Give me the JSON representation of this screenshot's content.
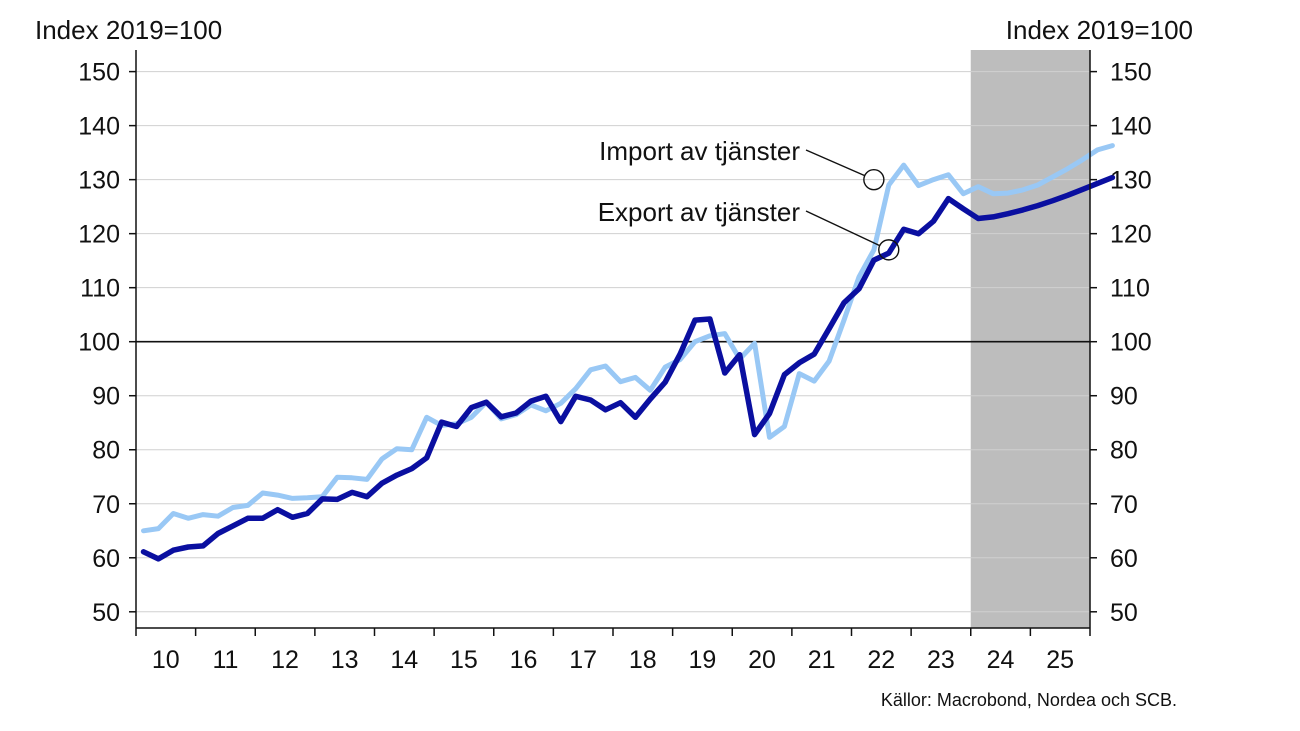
{
  "chart_data": {
    "type": "line",
    "y_axis_label_left": "Index 2019=100",
    "y_axis_label_right": "Index 2019=100",
    "source": "Källor: Macrobond, Nordea och SCB.",
    "ylim": [
      47,
      154
    ],
    "yticks": [
      50,
      60,
      70,
      80,
      90,
      100,
      110,
      120,
      130,
      140,
      150
    ],
    "ytick_labels": [
      "50",
      "60",
      "70",
      "80",
      "90",
      "100",
      "110",
      "120",
      "130",
      "140",
      "150"
    ],
    "xlim": [
      2010.0,
      2026.0
    ],
    "xtick_labels": [
      "10",
      "11",
      "12",
      "13",
      "14",
      "15",
      "16",
      "17",
      "18",
      "19",
      "20",
      "21",
      "22",
      "23",
      "24",
      "25"
    ],
    "xtick_years": [
      2010,
      2011,
      2012,
      2013,
      2014,
      2015,
      2016,
      2017,
      2018,
      2019,
      2020,
      2021,
      2022,
      2023,
      2024,
      2025
    ],
    "reference_line": 100,
    "forecast_shading": {
      "from": 2024.0,
      "to": 2026.0,
      "color": "#bdbdbd"
    },
    "grid": "horizontal",
    "series": [
      {
        "name": "Import av tjänster",
        "color": "#99c8f5",
        "annotation_at": [
          2022.375,
          130
        ],
        "label_at": [
          2022.9,
          153
        ],
        "values": [
          65.0,
          65.4,
          68.2,
          67.3,
          68.0,
          67.7,
          69.3,
          69.7,
          72.0,
          71.6,
          71.0,
          71.1,
          71.3,
          74.9,
          74.8,
          74.5,
          78.3,
          80.2,
          80.0,
          86.0,
          84.5,
          84.8,
          86.0,
          88.8,
          85.7,
          86.5,
          88.3,
          87.2,
          88.6,
          91.3,
          94.8,
          95.5,
          92.6,
          93.4,
          91.0,
          95.3,
          96.7,
          100.0,
          101.1,
          101.5,
          96.8,
          99.7,
          82.3,
          84.3,
          94.1,
          92.7,
          96.4,
          104.0,
          112.0,
          117.0,
          129.0,
          132.7,
          128.9,
          130.0,
          130.9,
          127.4,
          128.7,
          127.4,
          127.5,
          128.1,
          129.0,
          130.5,
          132.0,
          133.7,
          135.5,
          136.3
        ]
      },
      {
        "name": "Export av tjänster",
        "color": "#0a0fa0",
        "annotation_at": [
          2022.625,
          117
        ],
        "label_at": [
          2022.9,
          165
        ],
        "values": [
          61.1,
          59.8,
          61.4,
          62.0,
          62.2,
          64.5,
          65.9,
          67.3,
          67.3,
          68.9,
          67.5,
          68.2,
          70.9,
          70.8,
          72.1,
          71.3,
          73.8,
          75.3,
          76.5,
          78.5,
          85.1,
          84.3,
          87.8,
          88.8,
          86.1,
          86.8,
          89.0,
          89.9,
          85.2,
          89.9,
          89.2,
          87.4,
          88.7,
          86.0,
          89.4,
          92.5,
          97.7,
          104.0,
          104.2,
          94.2,
          97.6,
          82.8,
          86.7,
          93.9,
          96.1,
          97.7,
          102.4,
          107.2,
          109.8,
          115.1,
          116.4,
          120.8,
          120.0,
          122.3,
          126.5,
          124.6,
          122.8,
          123.1,
          123.7,
          124.4,
          125.2,
          126.1,
          127.1,
          128.2,
          129.3,
          130.4
        ]
      }
    ]
  }
}
